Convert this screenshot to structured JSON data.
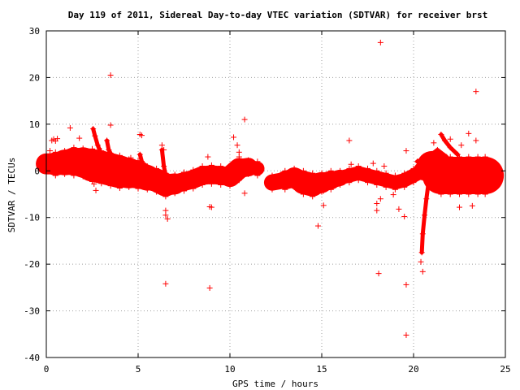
{
  "chart_data": {
    "type": "scatter",
    "title": "Day 119 of 2011, Sidereal Day-to-day VTEC variation (SDTVAR) for receiver brst",
    "xlabel": "GPS time / hours",
    "ylabel": "SDTVAR / TECUs",
    "xlim": [
      0,
      25
    ],
    "ylim": [
      -40,
      30
    ],
    "xticks": [
      "0",
      "5",
      "10",
      "15",
      "20",
      "25"
    ],
    "yticks": [
      "30",
      "20",
      "10",
      "0",
      "-10",
      "-20",
      "-30",
      "-40"
    ],
    "grid": true,
    "color": "#ff0000",
    "marker": "plus",
    "series": [
      {
        "segments": [
          {
            "x": [
              0,
              0.5,
              1,
              1.5,
              2,
              2.5,
              3,
              3.5,
              4,
              4.5,
              5,
              5.5,
              6,
              6.5,
              7,
              7.5,
              8,
              8.5,
              9,
              9.5,
              10,
              10.5,
              11,
              11.5
            ],
            "y": [
              1.5,
              1.5,
              1.8,
              2.0,
              1.8,
              1.2,
              0.8,
              0.3,
              -0.2,
              -0.5,
              -0.8,
              -1.5,
              -2.0,
              -3.0,
              -2.8,
              -2.3,
              -1.8,
              -1.0,
              -0.8,
              -1.0,
              -1.2,
              0.5,
              0.8,
              0.5
            ],
            "w": [
              4,
              5,
              5,
              6,
              6,
              7,
              7,
              7,
              7,
              6,
              6,
              5,
              5,
              5,
              4,
              4,
              4,
              4,
              4,
              4,
              4,
              5,
              3,
              3
            ]
          },
          {
            "x": [
              12.3,
              13,
              13.5,
              14,
              14.5,
              15,
              15.5,
              16,
              16.5,
              17,
              17.5,
              18,
              18.5,
              19,
              19.5,
              20,
              20.5,
              21,
              21.5,
              22,
              22.5,
              23,
              23.5,
              23.9
            ],
            "y": [
              -2.5,
              -2.0,
              -1.5,
              -2.5,
              -3.0,
              -2.5,
              -2.0,
              -1.5,
              -1.0,
              -0.5,
              -1.0,
              -1.5,
              -2.0,
              -2.5,
              -2.0,
              -1.0,
              0.0,
              1.0,
              -1.0,
              -1.0,
              -1.0,
              -1.0,
              -1.0,
              -1.0
            ],
            "w": [
              3,
              4,
              4,
              5,
              5,
              4,
              4,
              3,
              3,
              3,
              3,
              3,
              3,
              3,
              3,
              3,
              3,
              5,
              8,
              8,
              8,
              8,
              8,
              8
            ]
          }
        ],
        "arcs": [
          {
            "x": [
              2.55,
              2.65,
              2.8,
              2.95,
              3.1,
              3.3,
              3.6,
              3.9
            ],
            "y": [
              9.0,
              7.5,
              5.5,
              4.0,
              3.0,
              2.0,
              1.0,
              0.5
            ]
          },
          {
            "x": [
              3.3,
              3.4,
              3.6,
              3.9,
              4.2,
              4.6
            ],
            "y": [
              6.5,
              4.5,
              3.0,
              1.8,
              1.0,
              0.5
            ]
          },
          {
            "x": [
              5.1,
              5.2,
              5.4,
              5.7,
              6.0,
              6.3
            ],
            "y": [
              3.5,
              2.0,
              0.8,
              0.0,
              -0.5,
              -0.8
            ]
          },
          {
            "x": [
              6.3,
              6.4,
              6.55,
              6.6
            ],
            "y": [
              4.5,
              1.0,
              -2.0,
              -4.5
            ]
          },
          {
            "x": [
              20.9,
              20.8,
              20.7,
              20.6,
              20.5,
              20.45
            ],
            "y": [
              -0.5,
              -3.0,
              -6.0,
              -9.5,
              -13.5,
              -17.5
            ]
          },
          {
            "x": [
              20.2,
              20.8,
              21.3,
              21.8
            ],
            "y": [
              2.0,
              3.0,
              4.5,
              3.0
            ]
          },
          {
            "x": [
              21.5,
              21.7,
              22.0,
              22.4
            ],
            "y": [
              7.8,
              6.5,
              5.0,
              3.5
            ]
          }
        ],
        "scatter": [
          [
            0.2,
            4.3
          ],
          [
            0.3,
            6.5
          ],
          [
            0.4,
            6.8
          ],
          [
            0.5,
            6.4
          ],
          [
            0.6,
            6.9
          ],
          [
            1.3,
            9.2
          ],
          [
            1.8,
            7.0
          ],
          [
            2.2,
            4.0
          ],
          [
            2.6,
            -2.8
          ],
          [
            2.7,
            -4.2
          ],
          [
            3.5,
            20.5
          ],
          [
            3.5,
            9.8
          ],
          [
            4.6,
            2.8
          ],
          [
            5.1,
            7.8
          ],
          [
            5.2,
            7.6
          ],
          [
            6.3,
            5.5
          ],
          [
            6.4,
            4.5
          ],
          [
            6.5,
            -8.5
          ],
          [
            6.5,
            -9.5
          ],
          [
            6.6,
            -10.3
          ],
          [
            6.5,
            -24.2
          ],
          [
            8.8,
            3.0
          ],
          [
            8.9,
            -7.7
          ],
          [
            9.0,
            -7.8
          ],
          [
            8.9,
            -25.1
          ],
          [
            9.0,
            -2.5
          ],
          [
            10.2,
            7.2
          ],
          [
            10.4,
            5.5
          ],
          [
            10.5,
            4.0
          ],
          [
            10.8,
            11.0
          ],
          [
            10.8,
            -4.8
          ],
          [
            14.8,
            -11.8
          ],
          [
            15.1,
            -4.3
          ],
          [
            15.1,
            -7.4
          ],
          [
            16.5,
            6.5
          ],
          [
            16.6,
            1.4
          ],
          [
            18.2,
            27.5
          ],
          [
            18.1,
            -22.0
          ],
          [
            18.0,
            -7.0
          ],
          [
            18.0,
            -8.5
          ],
          [
            18.2,
            -6.0
          ],
          [
            18.4,
            1.0
          ],
          [
            17.8,
            1.6
          ],
          [
            19.2,
            -8.2
          ],
          [
            19.5,
            -9.8
          ],
          [
            19.6,
            4.3
          ],
          [
            19.6,
            -24.4
          ],
          [
            19.6,
            -35.2
          ],
          [
            18.9,
            -5.1
          ],
          [
            20.4,
            -19.5
          ],
          [
            20.5,
            -21.6
          ],
          [
            21.1,
            6.0
          ],
          [
            22.0,
            6.8
          ],
          [
            22.6,
            5.5
          ],
          [
            23.0,
            8.0
          ],
          [
            23.4,
            17.0
          ],
          [
            23.4,
            6.5
          ],
          [
            22.5,
            -7.8
          ],
          [
            23.2,
            -7.5
          ],
          [
            23.5,
            -3.9
          ]
        ]
      }
    ]
  }
}
